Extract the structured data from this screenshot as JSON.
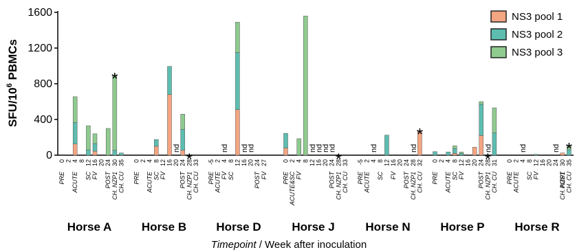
{
  "chart_data": {
    "type": "bar",
    "stacked": true,
    "ylabel_main": "SFU/10",
    "ylabel_sup": "6",
    "ylabel_end": " PBMCs",
    "ylim": [
      0,
      1600
    ],
    "yticks": [
      "0",
      "400",
      "800",
      "1200",
      "1600"
    ],
    "xlabel_italic": "Timepoint",
    "xlabel_rest": " / Week after inoculation",
    "legend": [
      {
        "name": "NS3 pool 1",
        "color": "#f4a582"
      },
      {
        "name": "NS3 pool 2",
        "color": "#5dbdb0"
      },
      {
        "name": "NS3 pool 3",
        "color": "#8fca8f"
      }
    ],
    "groups": [
      {
        "name": "Horse A",
        "weeks": [
          "0",
          "2",
          "4",
          "8",
          "12",
          "16",
          "20",
          "24",
          "30",
          "35"
        ],
        "annotations": [
          {
            "text": "PRE",
            "at": "0"
          },
          {
            "text": "ACUTE",
            "at": "4"
          },
          {
            "text": "SC",
            "at": "12"
          },
          {
            "text": "FV",
            "at": "16"
          },
          {
            "text": "POST",
            "at": "24"
          },
          {
            "text": "CH. NZP1",
            "at": "30"
          },
          {
            "text": "CH. CU",
            "at": "35"
          }
        ],
        "bars": [
          {
            "week": "4",
            "p1": 125,
            "p2": 240,
            "p3": 290
          },
          {
            "week": "12",
            "p1": 0,
            "p2": 60,
            "p3": 270
          },
          {
            "week": "16",
            "p1": 45,
            "p2": 85,
            "p3": 110
          },
          {
            "week": "24",
            "p1": 0,
            "p2": 0,
            "p3": 300
          },
          {
            "week": "30",
            "p1": 0,
            "p2": 55,
            "p3": 835
          },
          {
            "week": "35",
            "p1": 0,
            "p2": 25,
            "p3": 0
          }
        ],
        "nd": [],
        "stars": [
          "30"
        ]
      },
      {
        "name": "Horse B",
        "weeks": [
          "0",
          "2",
          "4",
          "8",
          "12",
          "16",
          "20",
          "24",
          "28",
          "33"
        ],
        "annotations": [
          {
            "text": "PRE",
            "at": "0"
          },
          {
            "text": "ACUTE",
            "at": "4"
          },
          {
            "text": "SC",
            "at": "8"
          },
          {
            "text": "FV",
            "at": "12"
          },
          {
            "text": "POST",
            "at": "24"
          },
          {
            "text": "CH. NZP1",
            "at": "28"
          },
          {
            "text": "CH. CU",
            "at": "33"
          }
        ],
        "bars": [
          {
            "week": "8",
            "p1": 100,
            "p2": 75,
            "p3": 0
          },
          {
            "week": "16",
            "p1": 680,
            "p2": 315,
            "p3": 0
          },
          {
            "week": "24",
            "p1": 55,
            "p2": 235,
            "p3": 170
          }
        ],
        "nd": [
          "20"
        ],
        "stars": [
          "28"
        ]
      },
      {
        "name": "Horse D",
        "weeks": [
          "-5",
          "2",
          "4",
          "8",
          "12",
          "16",
          "20",
          "24",
          "27"
        ],
        "annotations": [
          {
            "text": "PRE",
            "at": "-5"
          },
          {
            "text": "ACUTE",
            "at": "2"
          },
          {
            "text": "FV",
            "at": "4"
          },
          {
            "text": "SC",
            "at": "8"
          },
          {
            "text": "POST",
            "at": "24"
          },
          {
            "text": "FV",
            "at": "27"
          }
        ],
        "bars": [
          {
            "week": "12",
            "p1": 510,
            "p2": 640,
            "p3": 340
          }
        ],
        "nd": [
          "4",
          "16",
          "20"
        ],
        "stars": []
      },
      {
        "name": "Horse J",
        "weeks": [
          "0",
          "2",
          "4",
          "8",
          "12",
          "16",
          "20",
          "24",
          "28",
          "33"
        ],
        "annotations": [
          {
            "text": "PRE",
            "at": "0"
          },
          {
            "text": "ACUTE&SC",
            "at": "2"
          },
          {
            "text": "FV",
            "at": "4"
          },
          {
            "text": "POST",
            "at": "24"
          },
          {
            "text": "CH. NZP1",
            "at": "28"
          },
          {
            "text": "CH. CU",
            "at": "33"
          }
        ],
        "bars": [
          {
            "week": "0",
            "p1": 80,
            "p2": 165,
            "p3": 0
          },
          {
            "week": "4",
            "p1": 0,
            "p2": 0,
            "p3": 185
          },
          {
            "week": "8",
            "p1": 0,
            "p2": 0,
            "p3": 1560
          }
        ],
        "nd": [
          "12",
          "16",
          "20",
          "24"
        ],
        "stars": [
          "28"
        ]
      },
      {
        "name": "Horse N",
        "weeks": [
          "-5",
          "2",
          "4",
          "8",
          "12",
          "16",
          "20",
          "24",
          "28",
          "32"
        ],
        "annotations": [
          {
            "text": "PRE",
            "at": "-5"
          },
          {
            "text": "ACUTE",
            "at": "2"
          },
          {
            "text": "SC",
            "at": "8"
          },
          {
            "text": "FV",
            "at": "16"
          },
          {
            "text": "POST",
            "at": "24"
          },
          {
            "text": "CH. NZP1",
            "at": "28"
          },
          {
            "text": "CH. CU",
            "at": "32"
          }
        ],
        "bars": [
          {
            "week": "12",
            "p1": 0,
            "p2": 225,
            "p3": 0
          },
          {
            "week": "32",
            "p1": 265,
            "p2": 0,
            "p3": 0
          }
        ],
        "nd": [
          "4",
          "28"
        ],
        "stars": [
          "32"
        ]
      },
      {
        "name": "Horse P",
        "weeks": [
          "0",
          "2",
          "4",
          "8",
          "12",
          "16",
          "20",
          "24",
          "28",
          "31"
        ],
        "annotations": [
          {
            "text": "PRE",
            "at": "0"
          },
          {
            "text": "ACUTE",
            "at": "4"
          },
          {
            "text": "SC",
            "at": "8"
          },
          {
            "text": "FV",
            "at": "12"
          },
          {
            "text": "POST",
            "at": "24"
          },
          {
            "text": "CH. NZP1",
            "at": "28"
          },
          {
            "text": "CH. CU",
            "at": "31"
          }
        ],
        "bars": [
          {
            "week": "0",
            "p1": 0,
            "p2": 40,
            "p3": 0
          },
          {
            "week": "4",
            "p1": 0,
            "p2": 35,
            "p3": 0
          },
          {
            "week": "8",
            "p1": 20,
            "p2": 55,
            "p3": 30
          },
          {
            "week": "12",
            "p1": 0,
            "p2": 20,
            "p3": 15
          },
          {
            "week": "20",
            "p1": 90,
            "p2": 0,
            "p3": 0
          },
          {
            "week": "24",
            "p1": 220,
            "p2": 350,
            "p3": 30
          },
          {
            "week": "31",
            "p1": 0,
            "p2": 250,
            "p3": 280
          }
        ],
        "nd": [
          "28"
        ],
        "stars": [
          "28"
        ]
      },
      {
        "name": "Horse R",
        "weeks": [
          "0",
          "2",
          "4",
          "8",
          "12",
          "16",
          "20",
          "24",
          "30",
          "35"
        ],
        "annotations": [
          {
            "text": "PRE",
            "at": "0"
          },
          {
            "text": "ACUTE",
            "at": "2"
          },
          {
            "text": "SC",
            "at": "8"
          },
          {
            "text": "FV",
            "at": "12"
          },
          {
            "text": "POST",
            "at": "30"
          },
          {
            "text": "CH. NZP1",
            "at": "30"
          },
          {
            "text": "CH. CU",
            "at": "35"
          }
        ],
        "bars": [
          {
            "week": "12",
            "p1": 0,
            "p2": 10,
            "p3": 0
          },
          {
            "week": "30",
            "p1": 25,
            "p2": 0,
            "p3": 0
          },
          {
            "week": "35",
            "p1": 0,
            "p2": 60,
            "p3": 45
          }
        ],
        "nd": [
          "4",
          "24"
        ],
        "stars": [
          "35"
        ]
      }
    ],
    "nd_label": "nd",
    "star_label": "*"
  }
}
